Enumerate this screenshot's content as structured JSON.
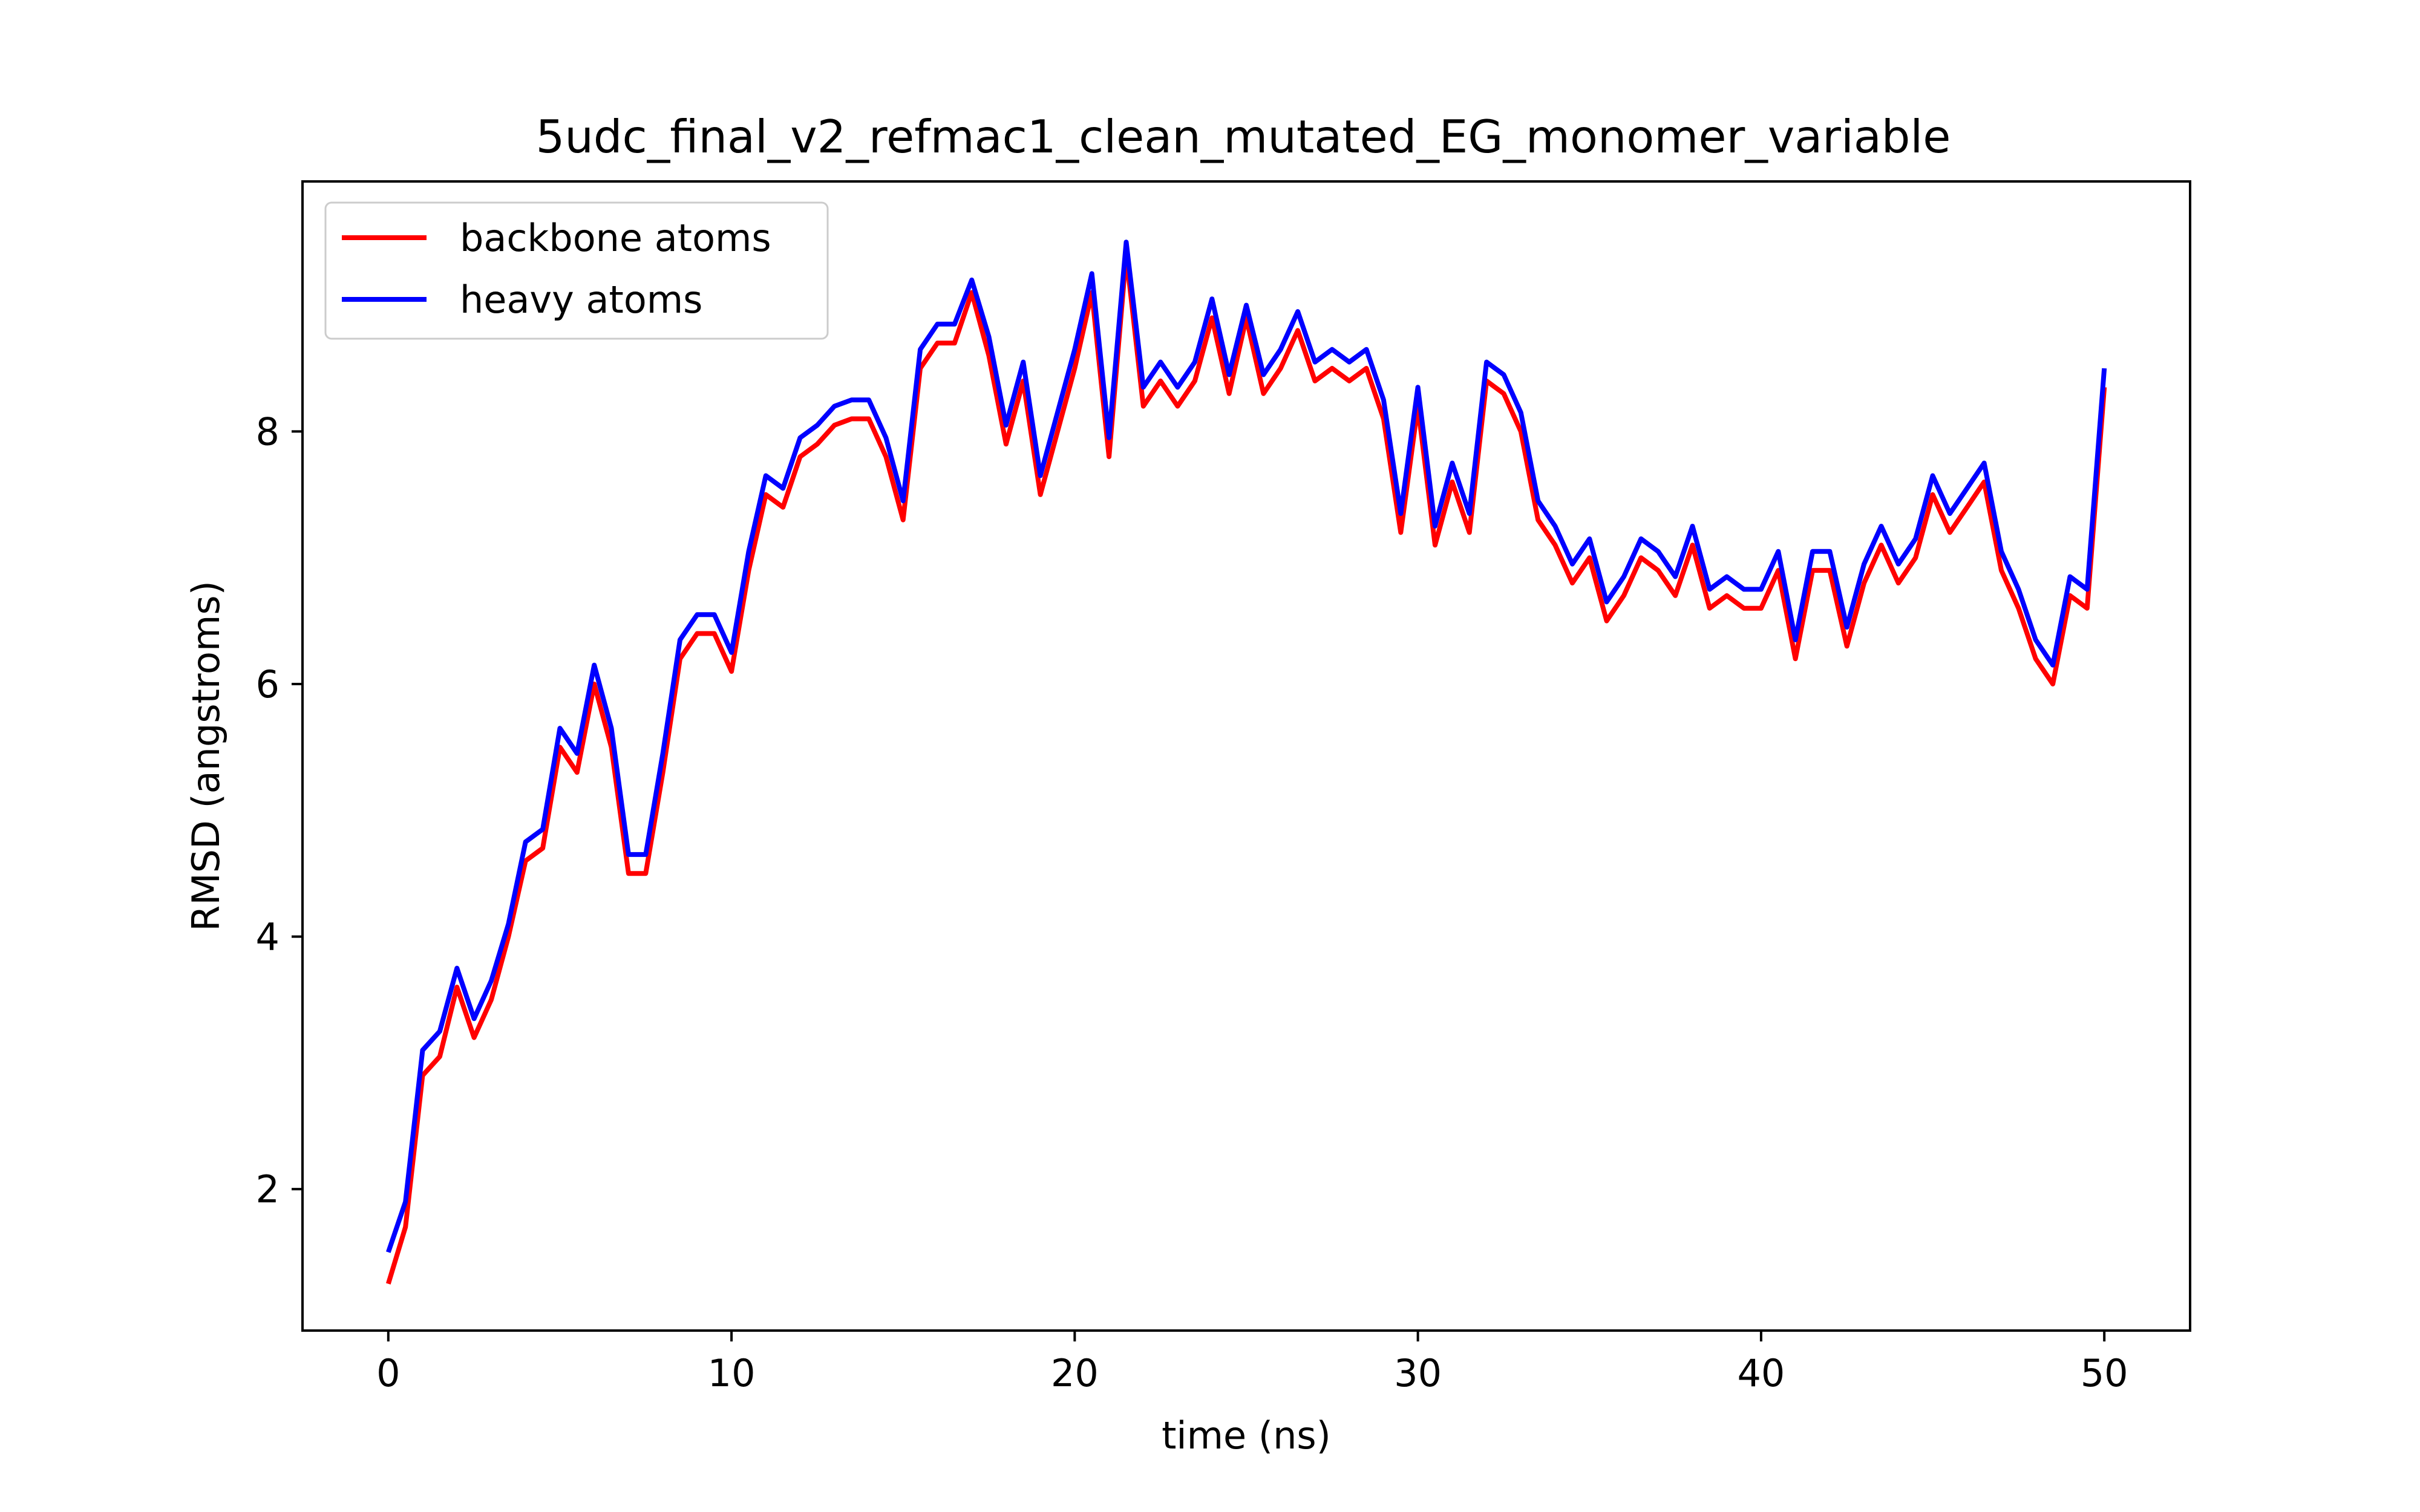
{
  "chart_data": {
    "type": "line",
    "title": "5udc_final_v2_refmac1_clean_mutated_EG_monomer_variable",
    "xlabel": "time (ns)",
    "ylabel": "RMSD (angstroms)",
    "xlim": [
      -2.5,
      52.5
    ],
    "ylim": [
      0.88,
      9.98
    ],
    "xticks": [
      0,
      10,
      20,
      30,
      40,
      50
    ],
    "yticks": [
      2,
      4,
      6,
      8
    ],
    "grid": false,
    "legend": "top-left",
    "x": [
      0,
      0.5,
      1,
      1.5,
      2,
      2.5,
      3,
      3.5,
      4,
      4.5,
      5,
      5.5,
      6,
      6.5,
      7,
      7.5,
      8,
      8.5,
      9,
      9.5,
      10,
      10.5,
      11,
      11.5,
      12,
      12.5,
      13,
      13.5,
      14,
      14.5,
      15,
      15.5,
      16,
      16.5,
      17,
      17.5,
      18,
      18.5,
      19,
      19.5,
      20,
      20.5,
      21,
      21.5,
      22,
      22.5,
      23,
      23.5,
      24,
      24.5,
      25,
      25.5,
      26,
      26.5,
      27,
      27.5,
      28,
      28.5,
      29,
      29.5,
      30,
      30.5,
      31,
      31.5,
      32,
      32.5,
      33,
      33.5,
      34,
      34.5,
      35,
      35.5,
      36,
      36.5,
      37,
      37.5,
      38,
      38.5,
      39,
      39.5,
      40,
      40.5,
      41,
      41.5,
      42,
      42.5,
      43,
      43.5,
      44,
      44.5,
      45,
      45.5,
      46,
      46.5,
      47,
      47.5,
      48,
      48.5,
      49,
      49.5,
      50
    ],
    "series": [
      {
        "name": "backbone atoms",
        "color": "#ff0000",
        "values": [
          1.25,
          1.7,
          2.9,
          3.05,
          3.6,
          3.2,
          3.5,
          4.0,
          4.6,
          4.7,
          5.5,
          5.3,
          6.0,
          5.5,
          4.5,
          4.5,
          5.3,
          6.2,
          6.4,
          6.4,
          6.1,
          6.9,
          7.5,
          7.4,
          7.8,
          7.9,
          8.05,
          8.1,
          8.1,
          7.8,
          7.3,
          8.5,
          8.7,
          8.7,
          9.1,
          8.6,
          7.9,
          8.4,
          7.5,
          8.0,
          8.5,
          9.1,
          7.8,
          9.4,
          8.2,
          8.4,
          8.2,
          8.4,
          8.9,
          8.3,
          8.9,
          8.3,
          8.5,
          8.8,
          8.4,
          8.5,
          8.4,
          8.5,
          8.1,
          7.2,
          8.2,
          7.1,
          7.6,
          7.2,
          8.4,
          8.3,
          8.0,
          7.3,
          7.1,
          6.8,
          7.0,
          6.5,
          6.7,
          7.0,
          6.9,
          6.7,
          7.1,
          6.6,
          6.7,
          6.6,
          6.6,
          6.9,
          6.2,
          6.9,
          6.9,
          6.3,
          6.8,
          7.1,
          6.8,
          7.0,
          7.5,
          7.2,
          7.4,
          7.6,
          6.9,
          6.6,
          6.2,
          6.0,
          6.7,
          6.6,
          8.35
        ]
      },
      {
        "name": "heavy atoms",
        "color": "#0000ff",
        "values": [
          1.5,
          1.9,
          3.1,
          3.25,
          3.75,
          3.35,
          3.65,
          4.1,
          4.75,
          4.85,
          5.65,
          5.45,
          6.15,
          5.65,
          4.65,
          4.65,
          5.45,
          6.35,
          6.55,
          6.55,
          6.25,
          7.05,
          7.65,
          7.55,
          7.95,
          8.05,
          8.2,
          8.25,
          8.25,
          7.95,
          7.45,
          8.65,
          8.85,
          8.85,
          9.2,
          8.75,
          8.05,
          8.55,
          7.65,
          8.15,
          8.65,
          9.25,
          7.95,
          9.5,
          8.35,
          8.55,
          8.35,
          8.55,
          9.05,
          8.45,
          9.0,
          8.45,
          8.65,
          8.95,
          8.55,
          8.65,
          8.55,
          8.65,
          8.25,
          7.35,
          8.35,
          7.25,
          7.75,
          7.35,
          8.55,
          8.45,
          8.15,
          7.45,
          7.25,
          6.95,
          7.15,
          6.65,
          6.85,
          7.15,
          7.05,
          6.85,
          7.25,
          6.75,
          6.85,
          6.75,
          6.75,
          7.05,
          6.35,
          7.05,
          7.05,
          6.45,
          6.95,
          7.25,
          6.95,
          7.15,
          7.65,
          7.35,
          7.55,
          7.75,
          7.05,
          6.75,
          6.35,
          6.15,
          6.85,
          6.75,
          8.5
        ]
      }
    ]
  }
}
